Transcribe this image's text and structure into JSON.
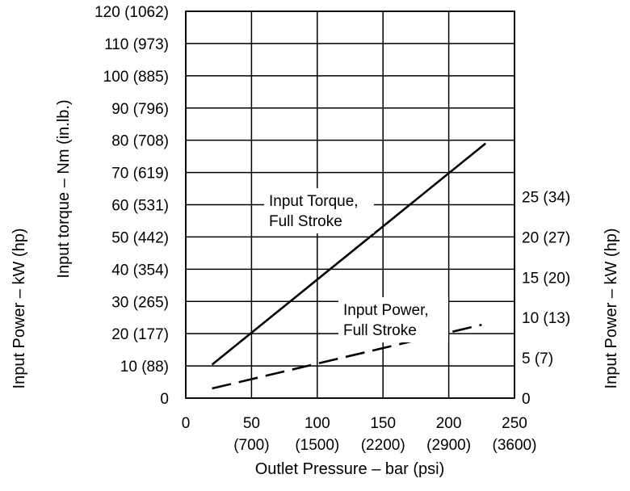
{
  "chart_data": {
    "type": "line",
    "title": "",
    "x": {
      "label": "Outlet Pressure – bar (psi)",
      "range": [
        0,
        250
      ],
      "ticks": [
        0,
        50,
        100,
        150,
        200,
        250
      ],
      "tick_labels": [
        "0",
        "50",
        "100",
        "150",
        "200",
        "250"
      ],
      "tick_sublabels": [
        "",
        "(700)",
        "(1500)",
        "(2200)",
        "(2900)",
        "(3600)"
      ]
    },
    "y_left": {
      "label_outer": "Input Power – kW (hp)",
      "label_inner": "Input torque – Nm (in.lb.)",
      "range": [
        0,
        120
      ],
      "ticks": [
        0,
        10,
        20,
        30,
        40,
        50,
        60,
        70,
        80,
        90,
        100,
        110,
        120
      ],
      "tick_labels": [
        "0",
        "10 (88)",
        "20 (177)",
        "30 (265)",
        "40 (354)",
        "50 (442)",
        "60 (531)",
        "70 (619)",
        "80 (708)",
        "90 (796)",
        "100 (885)",
        "110 (973)",
        "120 (1062)"
      ]
    },
    "y_right": {
      "label": "Input Power – kW (hp)",
      "range": [
        0,
        48
      ],
      "ticks": [
        0,
        5,
        10,
        15,
        20,
        25
      ],
      "tick_labels": [
        "0",
        "5 (7)",
        "10 (13)",
        "15 (20)",
        "20 (27)",
        "25 (34)"
      ]
    },
    "grid": true,
    "series": [
      {
        "name": "Input Torque, Full Stroke",
        "axis": "left",
        "style": "solid",
        "color": "#000000",
        "x": [
          20,
          228
        ],
        "y": [
          10.4,
          79
        ]
      },
      {
        "name": "Input Power, Full Stroke",
        "axis": "right",
        "style": "dashed",
        "color": "#000000",
        "x": [
          20,
          225
        ],
        "y": [
          1.2,
          9.1
        ]
      }
    ],
    "annotations": [
      {
        "lines": [
          "Input Torque,",
          "Full Stroke"
        ],
        "series": 0
      },
      {
        "lines": [
          "Input Power,",
          "Full Stroke"
        ],
        "series": 1
      }
    ]
  }
}
